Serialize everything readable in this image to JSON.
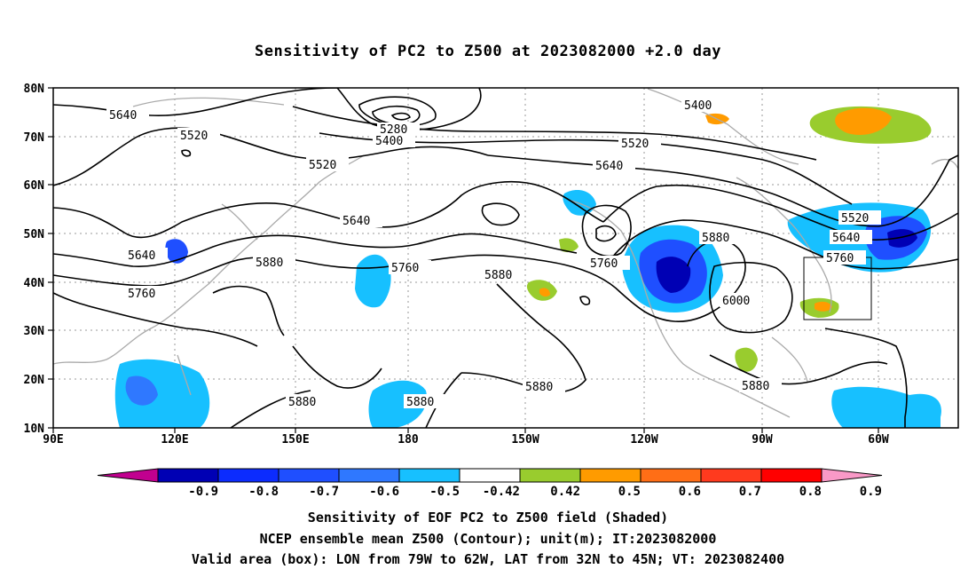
{
  "title": "Sensitivity of PC2 to Z500 at 2023082000 +2.0 day",
  "lon_labels": [
    "90E",
    "120E",
    "150E",
    "180",
    "150W",
    "120W",
    "90W",
    "60W"
  ],
  "lat_labels": [
    "80N",
    "70N",
    "60N",
    "50N",
    "40N",
    "30N",
    "20N",
    "10N"
  ],
  "contour_labels": [
    "5640",
    "5520",
    "5520",
    "5640",
    "5280",
    "5400",
    "5400",
    "5520",
    "5640",
    "5640",
    "5760",
    "5880",
    "5760",
    "5880",
    "5760",
    "5880",
    "6000",
    "5520",
    "5640",
    "5760",
    "5880",
    "5880",
    "5880",
    "5880"
  ],
  "colorbar": {
    "ticks": [
      "-0.9",
      "-0.8",
      "-0.7",
      "-0.6",
      "-0.5",
      "-0.42",
      "0.42",
      "0.5",
      "0.6",
      "0.7",
      "0.8",
      "0.9"
    ],
    "colors": [
      "#c1008f",
      "#0000b4",
      "#0c2cfe",
      "#1f4fff",
      "#2f78ff",
      "#17c0ff",
      "#ffffff",
      "#99cc2e",
      "#ff9b00",
      "#ff6e16",
      "#ff3a1e",
      "#ff0000",
      "#f999c7"
    ]
  },
  "captions": {
    "line1": "Sensitivity of EOF PC2 to Z500 field (Shaded)",
    "line2": "NCEP ensemble mean Z500 (Contour); unit(m); IT:2023082000",
    "line3": "Valid area (box): LON from 79W to 62W, LAT from 32N to 45N; VT: 2023082400"
  }
}
